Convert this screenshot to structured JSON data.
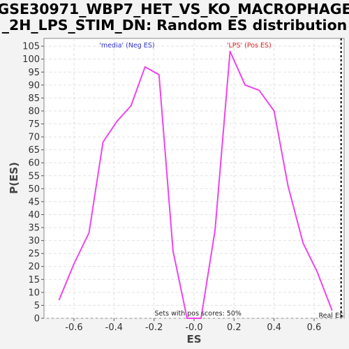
{
  "chart_data": {
    "type": "line",
    "title_line1": "GSE30971_WBP7_HET_VS_KO_MACROPHAGE",
    "title_line2": "_2H_LPS_STIM_DN: Random ES distribution",
    "xlabel": "ES",
    "ylabel": "P(ES)",
    "xlim": [
      -0.75,
      0.75
    ],
    "ylim": [
      0,
      108
    ],
    "x_ticks": [
      -0.6,
      -0.4,
      -0.2,
      0.0,
      0.2,
      0.4,
      0.6
    ],
    "x_tick_labels": [
      "-0.6",
      "-0.4",
      "-0.2",
      "-0.0",
      "0.2",
      "0.4",
      "0.6"
    ],
    "y_ticks": [
      0,
      5,
      10,
      15,
      20,
      25,
      30,
      35,
      40,
      45,
      50,
      55,
      60,
      65,
      70,
      75,
      80,
      85,
      90,
      95,
      100,
      105
    ],
    "grid": true,
    "series": [
      {
        "color": "#ee44ee",
        "x": [
          -0.675,
          -0.6,
          -0.525,
          -0.455,
          -0.385,
          -0.315,
          -0.245,
          -0.175,
          -0.105,
          -0.035,
          0.035,
          0.105,
          0.18,
          0.255,
          0.325,
          0.4,
          0.47,
          0.545,
          0.615,
          0.69
        ],
        "y": [
          7,
          21,
          33,
          68,
          76,
          82,
          97,
          94,
          26,
          0,
          0,
          34,
          103,
          90,
          88,
          80,
          51,
          29,
          18,
          3
        ]
      }
    ],
    "real_es": 0.735,
    "annotations": {
      "neg_label": "'media' (Neg ES)",
      "pos_label": "'LPS' (Pos ES)",
      "pos_scores": "Sets with pos scores: 50%",
      "real_es": "Real ES"
    },
    "colors": {
      "neg": "#3333cc",
      "pos": "#dd2222",
      "line": "#ee44ee",
      "real_es": "#000000"
    }
  }
}
